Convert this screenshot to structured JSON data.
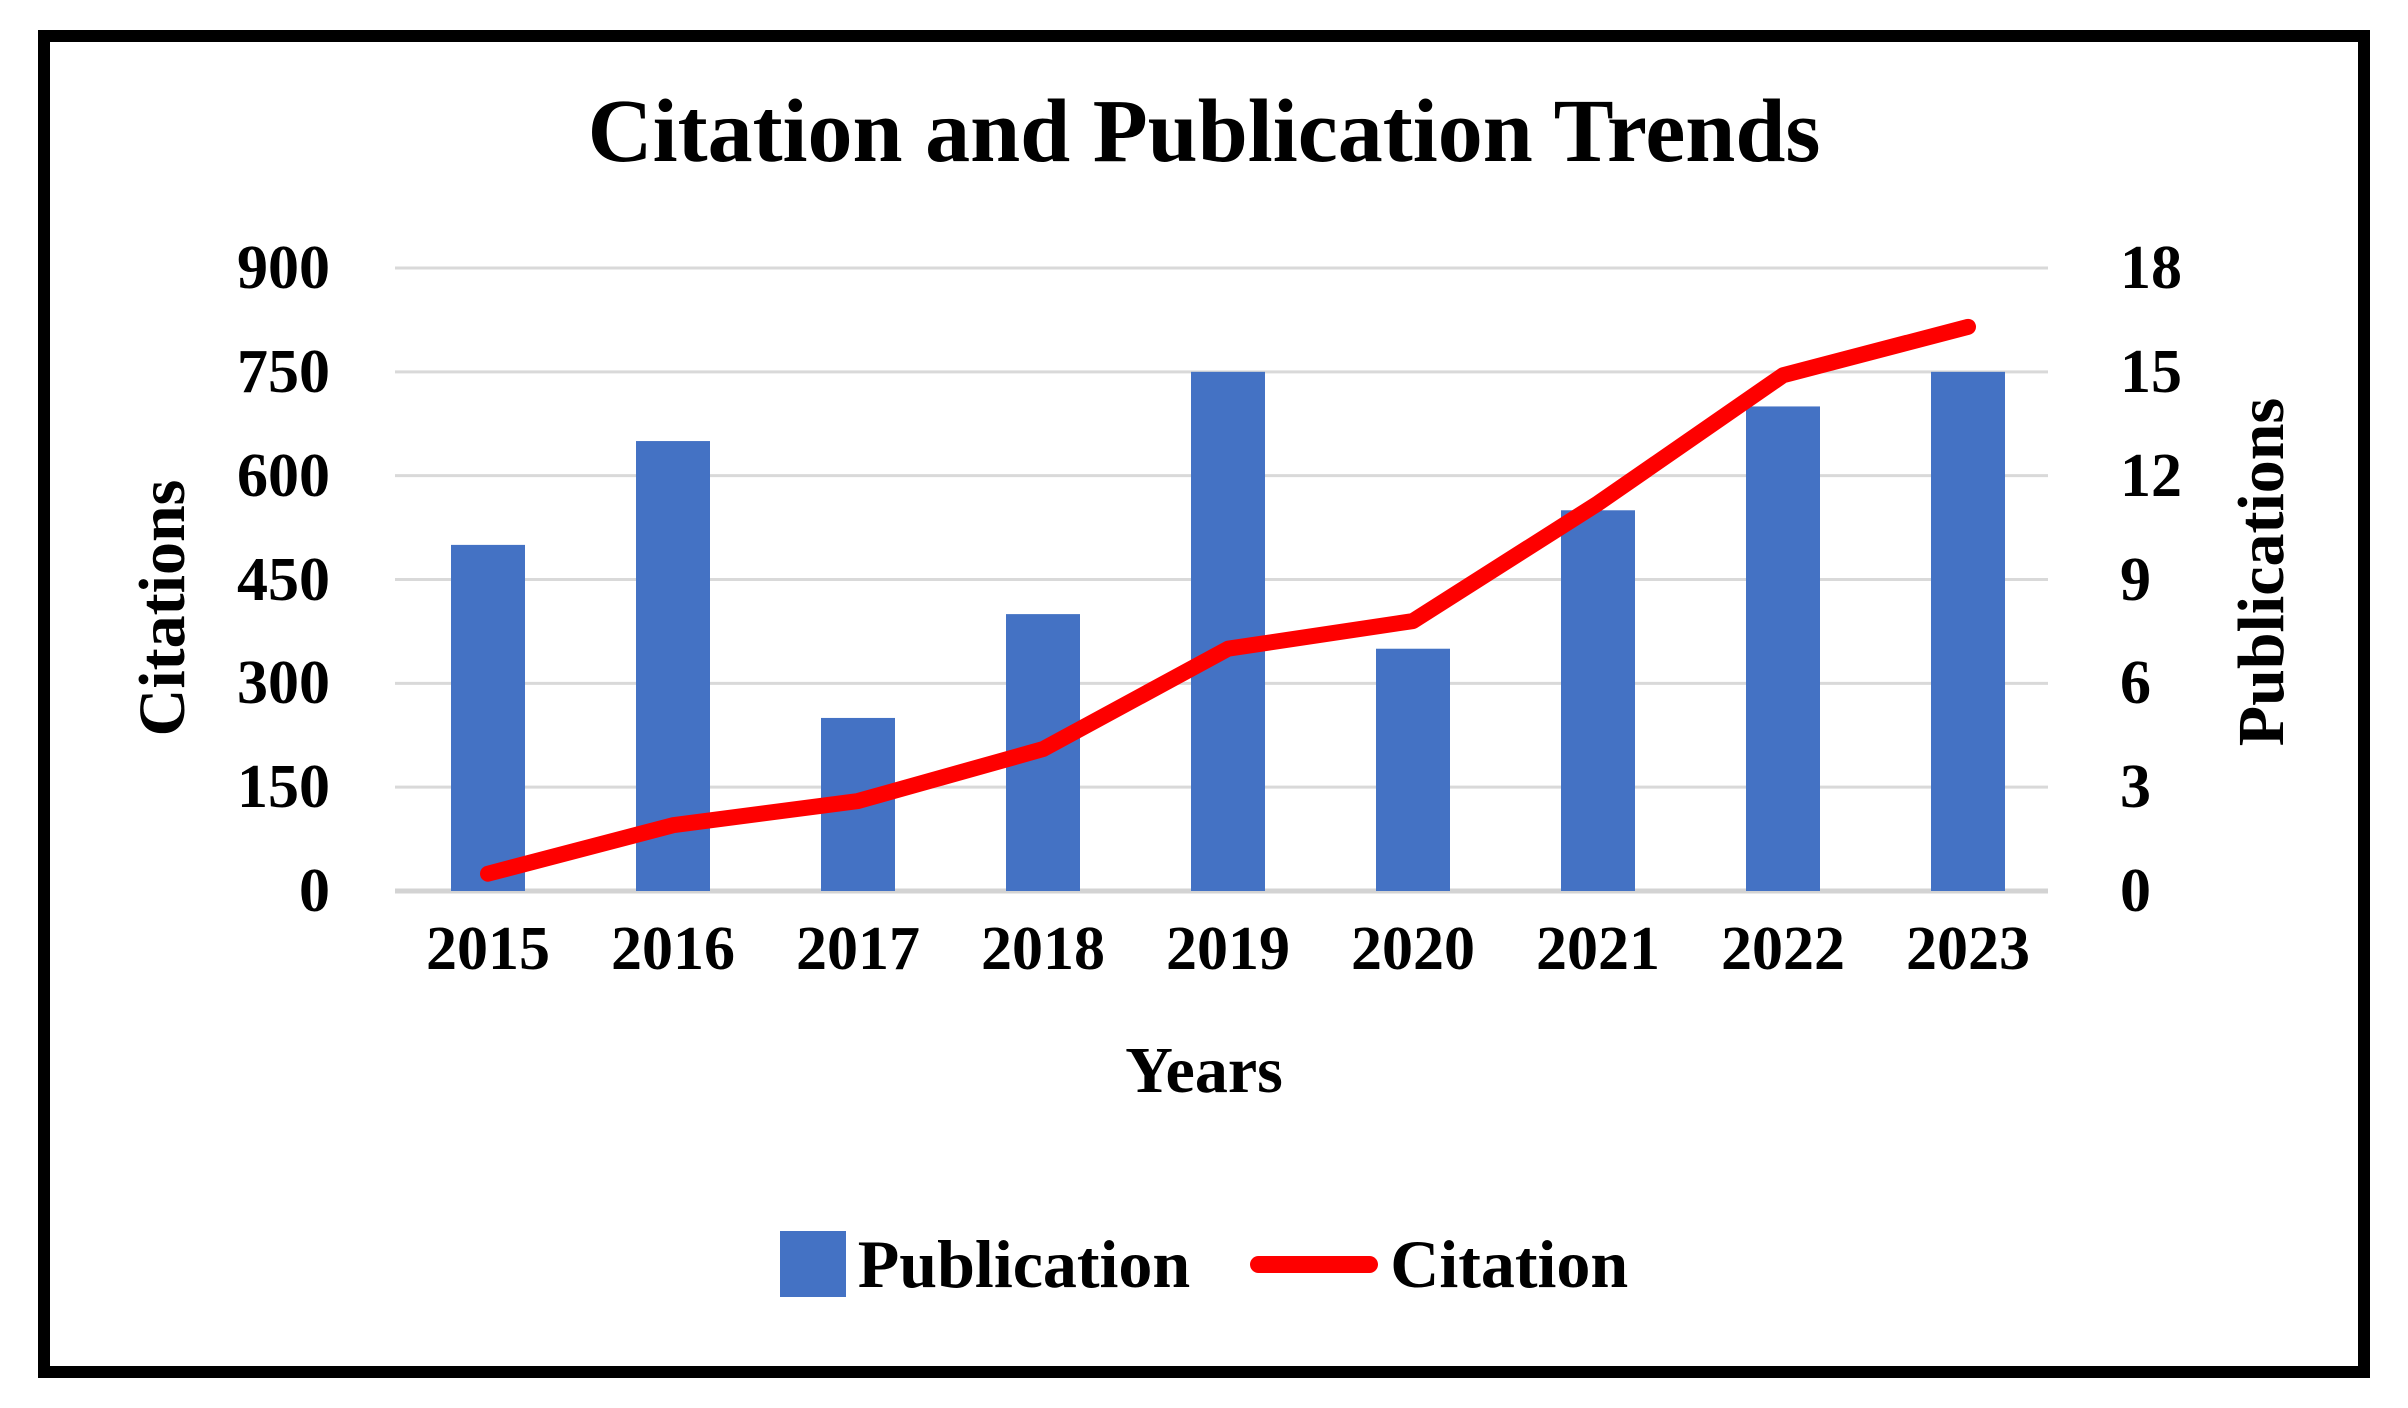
{
  "title": "Citation and Publication Trends",
  "chart_data": {
    "type": "bar",
    "subtype": "bar-line-combo",
    "title": "Citation and Publication Trends",
    "xlabel": "Years",
    "categories": [
      "2015",
      "2016",
      "2017",
      "2018",
      "2019",
      "2020",
      "2021",
      "2022",
      "2023"
    ],
    "series": [
      {
        "name": "Publication",
        "render": "bar",
        "axis": "right",
        "color": "#4472C4",
        "values": [
          10,
          13,
          5,
          8,
          15,
          7,
          11,
          14,
          15
        ]
      },
      {
        "name": "Citation",
        "render": "line",
        "axis": "left",
        "color": "#FE0000",
        "values": [
          25,
          95,
          130,
          205,
          350,
          390,
          560,
          745,
          815
        ]
      }
    ],
    "left_axis": {
      "label": "Citations",
      "min": 0,
      "max": 900,
      "step": 150,
      "ticks": [
        0,
        150,
        300,
        450,
        600,
        750,
        900
      ]
    },
    "right_axis": {
      "label": "Publications",
      "min": 0,
      "max": 18,
      "step": 3,
      "ticks": [
        0,
        3,
        6,
        9,
        12,
        15,
        18
      ]
    },
    "grid": true,
    "legend_position": "bottom",
    "colors": {
      "grid": "#D9D9D9",
      "axis_line": "#D3D3D3",
      "text": "#000000",
      "background": "#FFFFFF",
      "border": "#000000"
    }
  }
}
